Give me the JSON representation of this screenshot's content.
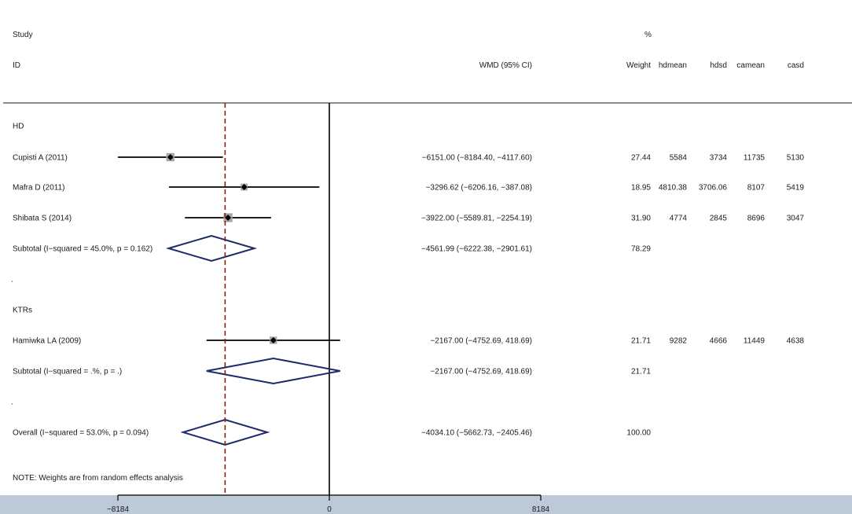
{
  "header": {
    "study_label": "Study",
    "id_label": "ID",
    "pct_label": "%",
    "wmd_label": "WMD (95% CI)",
    "weight_label": "Weight",
    "col_hdmean": "hdmean",
    "col_hdsd": "hdsd",
    "col_camean": "camean",
    "col_casd": "casd"
  },
  "note": "NOTE: Weights are from random effects analysis",
  "chart_data": {
    "type": "forest",
    "effect_measure": "WMD (95% CI)",
    "null_line": 0,
    "overall_line": -4034.1,
    "xlim": [
      -8184,
      8184
    ],
    "x_ticks": [
      -8184,
      0,
      8184
    ],
    "x_tick_labels": [
      "−8184",
      "0",
      "8184"
    ],
    "rows": [
      {
        "kind": "group",
        "label": "HD"
      },
      {
        "kind": "study",
        "label": "Cupisti A (2011)",
        "est": -6151.0,
        "lo": -8184.4,
        "hi": -4117.6,
        "ci_text": "−6151.00 (−8184.40, −4117.60)",
        "weight": "27.44",
        "hdmean": "5584",
        "hdsd": "3734",
        "camean": "11735",
        "casd": "5130"
      },
      {
        "kind": "study",
        "label": "Mafra D (2011)",
        "est": -3296.62,
        "lo": -6206.16,
        "hi": -387.08,
        "ci_text": "−3296.62 (−6206.16, −387.08)",
        "weight": "18.95",
        "hdmean": "4810.38",
        "hdsd": "3706.06",
        "camean": "8107",
        "casd": "5419"
      },
      {
        "kind": "study",
        "label": "Shibata S (2014)",
        "est": -3922.0,
        "lo": -5589.81,
        "hi": -2254.19,
        "ci_text": "−3922.00 (−5589.81, −2254.19)",
        "weight": "31.90",
        "hdmean": "4774",
        "hdsd": "2845",
        "camean": "8696",
        "casd": "3047"
      },
      {
        "kind": "subtotal",
        "label": "Subtotal  (I−squared = 45.0%, p = 0.162)",
        "est": -4561.99,
        "lo": -6222.38,
        "hi": -2901.61,
        "ci_text": "−4561.99 (−6222.38, −2901.61)",
        "weight": "78.29"
      },
      {
        "kind": "spacer",
        "label": "."
      },
      {
        "kind": "group",
        "label": "KTRs"
      },
      {
        "kind": "study",
        "label": "Hamiwka LA (2009)",
        "est": -2167.0,
        "lo": -4752.69,
        "hi": 418.69,
        "ci_text": "−2167.00 (−4752.69, 418.69)",
        "weight": "21.71",
        "hdmean": "9282",
        "hdsd": "4666",
        "camean": "11449",
        "casd": "4638"
      },
      {
        "kind": "subtotal",
        "label": "Subtotal  (I−squared = .%, p = .)",
        "est": -2167.0,
        "lo": -4752.69,
        "hi": 418.69,
        "ci_text": "−2167.00 (−4752.69, 418.69)",
        "weight": "21.71"
      },
      {
        "kind": "spacer",
        "label": "."
      },
      {
        "kind": "overall",
        "label": "Overall  (I−squared = 53.0%, p = 0.094)",
        "est": -4034.1,
        "lo": -5662.73,
        "hi": -2405.46,
        "ci_text": "−4034.10 (−5662.73, −2405.46)",
        "weight": "100.00"
      }
    ]
  },
  "colors": {
    "text": "#1a1a1a",
    "ci_line": "#000000",
    "diamond": "#1f2a6b",
    "overall_line": "#8b1a1a",
    "weight_box": "#a6a6a6",
    "axis_band": "#bcc9d6"
  }
}
